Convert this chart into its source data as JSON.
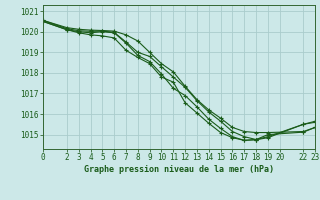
{
  "title": "Graphe pression niveau de la mer (hPa)",
  "background_color": "#cce8e8",
  "grid_color": "#aacccc",
  "line_color": "#1a5c1a",
  "spine_color": "#336633",
  "xlim": [
    0,
    23
  ],
  "ylim": [
    1014.3,
    1021.3
  ],
  "xticks": [
    0,
    2,
    3,
    4,
    5,
    6,
    7,
    8,
    9,
    10,
    11,
    12,
    13,
    14,
    15,
    16,
    17,
    18,
    19,
    20,
    22,
    23
  ],
  "yticks": [
    1015,
    1016,
    1017,
    1018,
    1019,
    1020,
    1021
  ],
  "lines": [
    {
      "x": [
        0,
        2,
        3,
        4,
        5,
        6,
        7,
        8,
        9,
        10,
        11,
        12,
        13,
        14,
        15,
        16,
        17,
        18,
        19,
        22,
        23
      ],
      "y": [
        1020.5,
        1020.1,
        1019.95,
        1019.85,
        1019.8,
        1019.7,
        1019.1,
        1018.75,
        1018.45,
        1017.8,
        1017.55,
        1016.55,
        1016.05,
        1015.55,
        1015.1,
        1014.85,
        1014.72,
        1014.76,
        1015.0,
        1015.12,
        1015.35
      ]
    },
    {
      "x": [
        0,
        2,
        3,
        4,
        5,
        6,
        7,
        8,
        9,
        10,
        11,
        12,
        13,
        14,
        15,
        16,
        17,
        18,
        19,
        22,
        23
      ],
      "y": [
        1020.5,
        1020.1,
        1020.0,
        1019.95,
        1020.0,
        1019.95,
        1019.45,
        1018.85,
        1018.55,
        1017.95,
        1017.25,
        1016.9,
        1016.35,
        1015.75,
        1015.3,
        1014.9,
        1014.72,
        1014.75,
        1014.85,
        1015.5,
        1015.6
      ]
    },
    {
      "x": [
        0,
        2,
        3,
        4,
        5,
        6,
        7,
        8,
        9,
        10,
        11,
        12,
        13,
        14,
        15,
        16,
        17,
        18,
        19,
        22,
        23
      ],
      "y": [
        1020.55,
        1020.15,
        1020.05,
        1020.02,
        1020.03,
        1019.97,
        1019.5,
        1019.0,
        1018.8,
        1018.3,
        1017.8,
        1017.3,
        1016.65,
        1016.1,
        1015.65,
        1015.15,
        1014.9,
        1014.76,
        1014.9,
        1015.5,
        1015.65
      ]
    },
    {
      "x": [
        0,
        2,
        3,
        4,
        5,
        6,
        7,
        8,
        9,
        10,
        11,
        12,
        13,
        14,
        15,
        16,
        17,
        18,
        19,
        22,
        23
      ],
      "y": [
        1020.55,
        1020.2,
        1020.12,
        1020.08,
        1020.06,
        1020.03,
        1019.85,
        1019.55,
        1019.0,
        1018.45,
        1018.05,
        1017.35,
        1016.7,
        1016.2,
        1015.8,
        1015.35,
        1015.15,
        1015.1,
        1015.1,
        1015.15,
        1015.35
      ]
    }
  ]
}
